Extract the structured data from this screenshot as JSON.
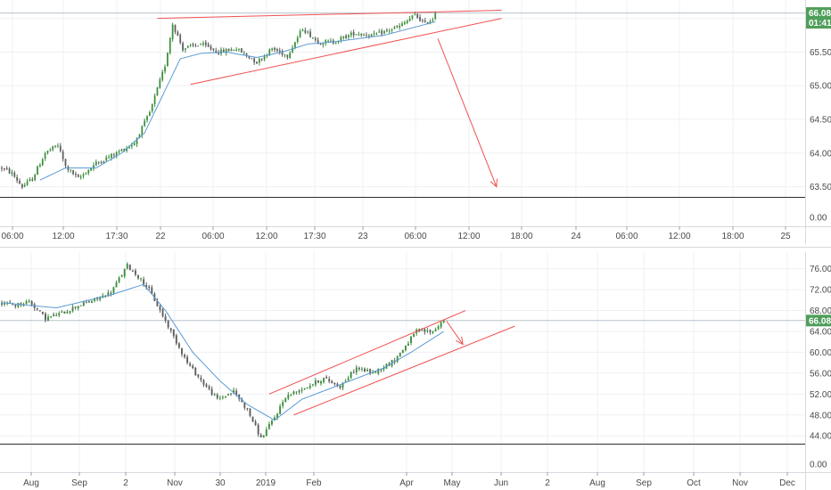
{
  "colors": {
    "up": "#26a69a",
    "down": "#ef5350",
    "candle_up": "#3d8f3d",
    "candle_down": "#5e5e5e",
    "ma": "#5b9bd5",
    "trendline": "#f25050",
    "badge": "#4f9e5a",
    "grid": "#eef0f3",
    "axis_text": "#4a4a4a"
  },
  "chart_data": [
    {
      "type": "candlestick",
      "panel": "intraday",
      "price_label": "66.08",
      "countdown_label": "01:41",
      "last_price": 66.08,
      "x_ticks": [
        "06:00",
        "12:00",
        "17:30",
        "22",
        "06:00",
        "12:00",
        "17:30",
        "23",
        "06:00",
        "12:00",
        "18:00",
        "24",
        "06:00",
        "12:00",
        "18:00",
        "25"
      ],
      "y_ticks": [
        "66.00",
        "65.50",
        "65.00",
        "64.50",
        "64.00",
        "63.50"
      ],
      "sub_y_ticks": [
        "0.00"
      ],
      "ylim": [
        63.35,
        66.22
      ],
      "start": 63.78,
      "low": 63.45,
      "high": 66.12,
      "end": 66.08,
      "path": [
        [
          0,
          63.78
        ],
        [
          4,
          63.7
        ],
        [
          8,
          63.5
        ],
        [
          12,
          63.62
        ],
        [
          17,
          64.0
        ],
        [
          22,
          64.12
        ],
        [
          25,
          63.8
        ],
        [
          30,
          63.62
        ],
        [
          37,
          63.85
        ],
        [
          44,
          63.98
        ],
        [
          52,
          64.15
        ],
        [
          58,
          64.6
        ],
        [
          64,
          65.3
        ],
        [
          67,
          65.92
        ],
        [
          71,
          65.55
        ],
        [
          78,
          65.62
        ],
        [
          85,
          65.5
        ],
        [
          92,
          65.55
        ],
        [
          100,
          65.35
        ],
        [
          106,
          65.55
        ],
        [
          112,
          65.45
        ],
        [
          118,
          65.85
        ],
        [
          124,
          65.65
        ],
        [
          130,
          65.65
        ],
        [
          138,
          65.78
        ],
        [
          146,
          65.75
        ],
        [
          156,
          65.88
        ],
        [
          162,
          66.05
        ],
        [
          166,
          65.92
        ],
        [
          170,
          66.02
        ]
      ],
      "ma_path": [
        [
          15,
          63.6
        ],
        [
          25,
          63.78
        ],
        [
          37,
          63.78
        ],
        [
          47,
          64.0
        ],
        [
          56,
          64.3
        ],
        [
          63,
          64.85
        ],
        [
          70,
          65.4
        ],
        [
          78,
          65.48
        ],
        [
          88,
          65.5
        ],
        [
          100,
          65.42
        ],
        [
          110,
          65.5
        ],
        [
          120,
          65.62
        ],
        [
          130,
          65.65
        ],
        [
          140,
          65.7
        ],
        [
          150,
          65.75
        ],
        [
          160,
          65.85
        ],
        [
          170,
          65.95
        ]
      ],
      "annotations": [
        {
          "type": "line",
          "from": [
            61,
            66.0
          ],
          "to": [
            196,
            66.12
          ]
        },
        {
          "type": "line",
          "from": [
            74,
            65.02
          ],
          "to": [
            196,
            66.0
          ]
        },
        {
          "type": "arrow",
          "from": [
            171,
            65.7
          ],
          "to": [
            194,
            63.5
          ]
        }
      ]
    },
    {
      "type": "candlestick",
      "panel": "daily",
      "price_label": "66.08",
      "last_price": 66.08,
      "x_ticks": [
        "Aug",
        "Sep",
        "2",
        "Nov",
        "30",
        "2019",
        "Feb",
        "Apr",
        "May",
        "Jun",
        "2",
        "Aug",
        "Sep",
        "Oct",
        "Nov",
        "Dec"
      ],
      "y_ticks": [
        "76.00",
        "72.00",
        "68.00",
        "64.00",
        "60.00",
        "56.00",
        "52.00",
        "48.00",
        "44.00"
      ],
      "sub_y_ticks": [
        "0.00"
      ],
      "ylim": [
        42.5,
        78.5
      ],
      "start": 69.5,
      "low": 43.0,
      "high": 76.6,
      "end": 66.08,
      "path": [
        [
          0,
          69.5
        ],
        [
          5,
          69.0
        ],
        [
          10,
          69.8
        ],
        [
          16,
          66.5
        ],
        [
          22,
          67.5
        ],
        [
          28,
          69.0
        ],
        [
          34,
          70.0
        ],
        [
          40,
          71.5
        ],
        [
          46,
          76.6
        ],
        [
          50,
          74.5
        ],
        [
          54,
          72.0
        ],
        [
          58,
          68.0
        ],
        [
          63,
          63.0
        ],
        [
          68,
          58.0
        ],
        [
          74,
          54.0
        ],
        [
          79,
          51.0
        ],
        [
          85,
          52.5
        ],
        [
          90,
          49.0
        ],
        [
          95,
          43.5
        ],
        [
          100,
          47.5
        ],
        [
          104,
          51.5
        ],
        [
          110,
          53.0
        ],
        [
          118,
          55.0
        ],
        [
          124,
          53.5
        ],
        [
          130,
          57.0
        ],
        [
          136,
          56.0
        ],
        [
          144,
          58.5
        ],
        [
          152,
          64.0
        ],
        [
          158,
          64.0
        ],
        [
          162,
          66.2
        ]
      ],
      "ma_path": [
        [
          0,
          69.5
        ],
        [
          20,
          68.5
        ],
        [
          40,
          71.0
        ],
        [
          52,
          73.0
        ],
        [
          60,
          68.0
        ],
        [
          70,
          60.0
        ],
        [
          80,
          54.5
        ],
        [
          90,
          50.0
        ],
        [
          100,
          47.0
        ],
        [
          110,
          51.0
        ],
        [
          120,
          53.0
        ],
        [
          130,
          55.0
        ],
        [
          140,
          57.0
        ],
        [
          150,
          60.0
        ],
        [
          162,
          64.0
        ]
      ],
      "annotations": [
        {
          "type": "line",
          "from": [
            98,
            52.0
          ],
          "to": [
            170,
            68.0
          ]
        },
        {
          "type": "line",
          "from": [
            107,
            48.0
          ],
          "to": [
            188,
            65.0
          ]
        },
        {
          "type": "arrow",
          "from": [
            163,
            66.0
          ],
          "to": [
            169,
            61.5
          ]
        }
      ]
    }
  ]
}
